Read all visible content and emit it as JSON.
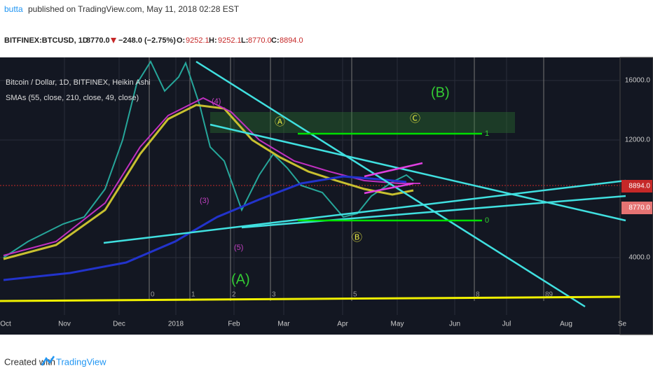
{
  "header": {
    "author": "butta",
    "published": "published on TradingView.com, May 11, 2018 02:28 EST"
  },
  "ticker": {
    "symbol": "BITFINEX:BTCUSD, 1D",
    "last": "8770.0",
    "change": "−248.0 (−2.75%)",
    "open_label": "O:",
    "open": "9252.1",
    "high_label": "H:",
    "high": "9252.1",
    "low_label": "L:",
    "low": "8770.0",
    "close_label": "C:",
    "close": "8894.0"
  },
  "legend": [
    "Bitcoin / Dollar, 1D, BITFINEX, Heikin Ashi",
    "SMAs (55, close, 210, close, 49, close)"
  ],
  "price_axis": [
    "16000.0",
    "12000.0",
    "8894.0",
    "8770.0",
    "4000.0"
  ],
  "time_axis": [
    "Oct",
    "Nov",
    "Dec",
    "2018",
    "Feb",
    "Mar",
    "Apr",
    "May",
    "Jun",
    "Jul",
    "Aug",
    "Se"
  ],
  "waves": [
    "(B)",
    "(A)",
    "Ⓐ",
    "Ⓒ",
    "Ⓑ",
    "(4)",
    "(3)",
    "(5)"
  ],
  "fib_levels": [
    "1",
    "0"
  ],
  "fib_times": [
    "0",
    "1",
    "2",
    "3",
    "5",
    "8",
    "89"
  ],
  "footer": {
    "created": "Created with",
    "brand": "TradingView"
  }
}
